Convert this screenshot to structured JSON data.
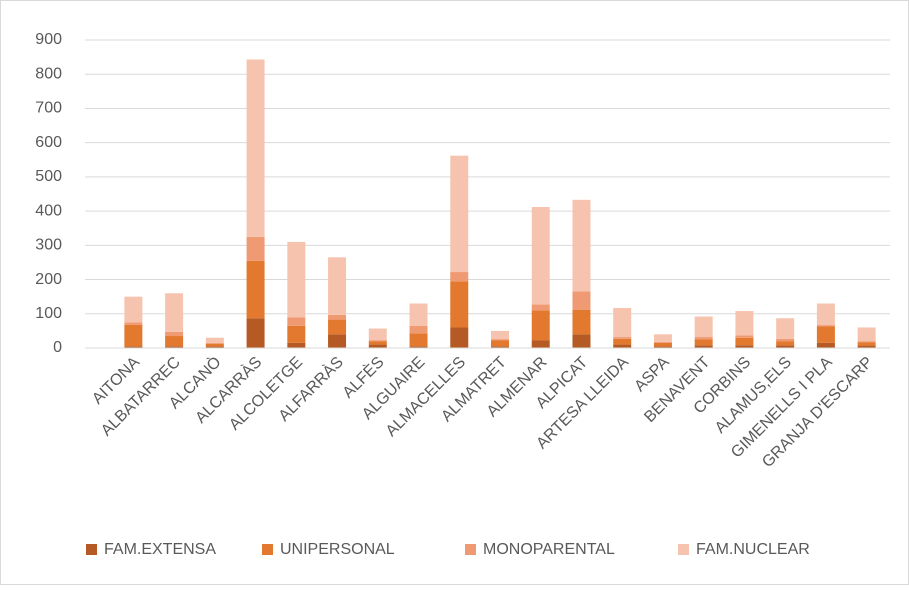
{
  "chart_data": {
    "type": "stacked_bar",
    "categories": [
      "AITONA",
      "ALBATARREC",
      "ALCANÒ",
      "ALCARRÀS",
      "ALCOLETGE",
      "ALFARRÀS",
      "ALFÈS",
      "ALGUAIRE",
      "ALMACELLES",
      "ALMATRET",
      "ALMENAR",
      "ALPICAT",
      "ARTESA LLEIDA",
      "ASPA",
      "BENAVENT",
      "CORBINS",
      "ALAMUS,ELS",
      "GIMENELLS I PLA",
      "GRANJA D'ESCARP"
    ],
    "series": [
      {
        "name": "FAM.EXTENSA",
        "color": "#b55a24",
        "values": [
          5,
          5,
          5,
          87,
          15,
          40,
          10,
          5,
          60,
          5,
          22,
          40,
          10,
          5,
          8,
          8,
          8,
          15,
          7
        ]
      },
      {
        "name": "UNIPERSONAL",
        "color": "#e2792f",
        "values": [
          63,
          30,
          7,
          168,
          50,
          43,
          10,
          38,
          135,
          18,
          88,
          72,
          17,
          10,
          17,
          22,
          12,
          48,
          10
        ]
      },
      {
        "name": "MONOPARENTAL",
        "color": "#f09a73",
        "values": [
          7,
          12,
          3,
          70,
          25,
          14,
          3,
          22,
          27,
          3,
          17,
          53,
          5,
          3,
          7,
          7,
          7,
          4,
          3
        ]
      },
      {
        "name": "FAM.NUCLEAR",
        "color": "#f6c4ae",
        "values": [
          75,
          113,
          15,
          518,
          220,
          168,
          34,
          65,
          340,
          24,
          285,
          268,
          85,
          22,
          60,
          71,
          60,
          63,
          40
        ]
      }
    ],
    "ylim": [
      0,
      900
    ],
    "yticks": [
      0,
      100,
      200,
      300,
      400,
      500,
      600,
      700,
      800,
      900
    ],
    "grid": true,
    "legend": "bottom"
  }
}
